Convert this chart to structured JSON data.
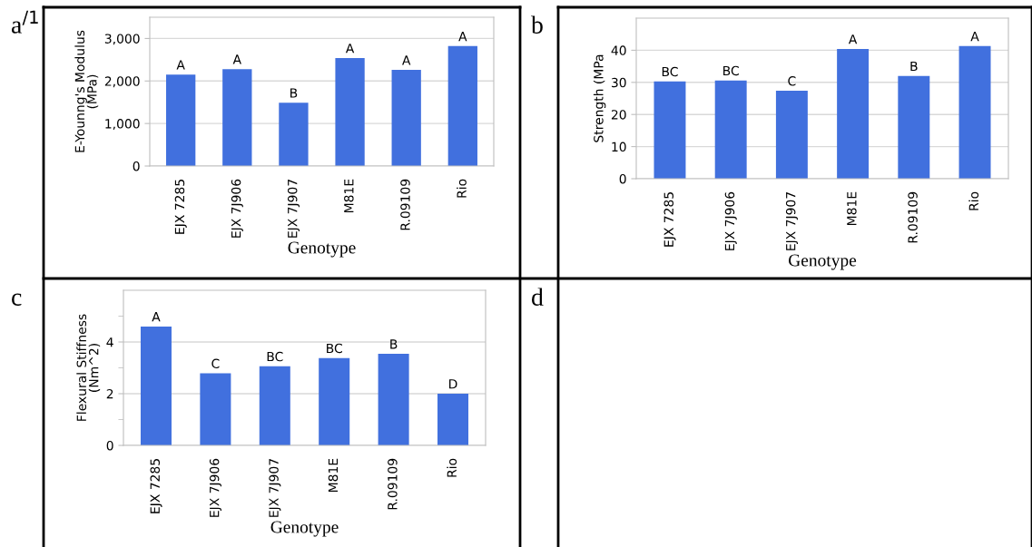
{
  "chart_data": [
    {
      "type": "bar",
      "annotations": [
        "a$^{/1}$"
      ],
      "xlabel": "Genotype",
      "ylabel": "E-Younng's Modulus\n(MPa)",
      "categories": [
        "EJX 7285",
        "EJX 7J906",
        "EJX 7J907",
        "M81E",
        "R.09109",
        "Rio"
      ],
      "values": [
        2150,
        2280,
        1490,
        2540,
        2260,
        2820
      ],
      "color": "#4170de",
      "value_labels": [
        "A",
        "A",
        "B",
        "A",
        "A",
        "A"
      ],
      "ylim": [
        0,
        3500
      ],
      "yticks": [
        0,
        {
          "value": 1000,
          "label": "1,000"
        },
        {
          "value": 2000,
          "label": "2,000"
        },
        {
          "value": 3000,
          "label": "3,000"
        }
      ],
      "grid": "y"
    },
    {
      "type": "bar",
      "annotations": [
        "b"
      ],
      "xlabel": "Genotype",
      "ylabel": "Strength (MPa",
      "categories": [
        "EJX 7285",
        "EJX 7J906",
        "EJX 7J907",
        "M81E",
        "R.09109",
        "Rio"
      ],
      "values": [
        30.3,
        30.6,
        27.4,
        40.4,
        32.0,
        41.3
      ],
      "color": "#4170de",
      "value_labels": [
        "BC",
        "BC",
        "C",
        "A",
        "B",
        "A"
      ],
      "ylim": [
        0,
        50
      ],
      "yticks": [
        0,
        10,
        20,
        30,
        40
      ],
      "grid": "y"
    },
    {
      "type": "bar",
      "annotations": [
        "c"
      ],
      "xlabel": "Genotype",
      "ylabel": "Flexural Stiffness\n(Nm^2)",
      "categories": [
        "EJX 7285",
        "EJX 7J906",
        "EJX 7J907",
        "M81E",
        "R.09109",
        "Rio"
      ],
      "values": [
        4.6,
        2.79,
        3.06,
        3.38,
        3.54,
        2.0
      ],
      "color": "#4170de",
      "value_labels": [
        "A",
        "C",
        "BC",
        "BC",
        "B",
        "D"
      ],
      "ylim": [
        0,
        6
      ],
      "yticks": [
        0,
        {
          "value": 1,
          "label": null
        },
        2,
        {
          "value": 3,
          "label": null
        },
        4,
        {
          "value": 5,
          "label": null
        }
      ],
      "grid": "y"
    },
    {
      "type": "other",
      "annotations": [
        "d"
      ]
    }
  ]
}
